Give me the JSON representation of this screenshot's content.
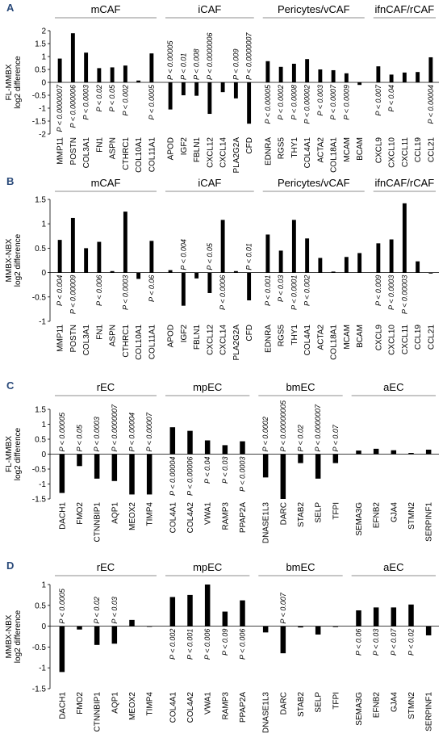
{
  "chart_data": [
    {
      "type": "bar",
      "panel_label": "A",
      "ylabel": [
        "FL-MMBX",
        "log2 difference"
      ],
      "ylim": [
        -2,
        2
      ],
      "yticks": [
        "-2",
        "-1.5",
        "-1",
        "-0.5",
        "0",
        "0.5",
        "1",
        "1.5",
        "2"
      ],
      "groups": [
        {
          "name": "mCAF",
          "categories": [
            "MMP11",
            "POSTN",
            "COL3A1",
            "FN1",
            "ASPN",
            "CTHRC1",
            "COL10A1",
            "COL11A1"
          ],
          "values": [
            0.92,
            1.9,
            1.15,
            0.55,
            0.58,
            0.65,
            0.07,
            1.12
          ],
          "pvalues": [
            "P < 0.0000007",
            "P < 0.000006",
            "P < 0.0003",
            "P < 0.02",
            "P < 0.05",
            "P < 0.002",
            "",
            "P < 0.0005"
          ]
        },
        {
          "name": "iCAF",
          "categories": [
            "APOD",
            "IGF2",
            "FBLN1",
            "CXCL12",
            "CXCL14",
            "PLA2G2A",
            "CFD"
          ],
          "values": [
            -1.05,
            -0.5,
            -0.52,
            -1.22,
            -0.38,
            -0.62,
            -1.6
          ],
          "pvalues": [
            "P < 0.00005",
            "P < 0.01",
            "P < 0.008",
            "P < 0.0000006",
            "",
            "P < 0.009",
            "P < 0.0000007"
          ]
        },
        {
          "name": "Pericytes/vCAF",
          "categories": [
            "EDNRA",
            "RGS5",
            "THY1",
            "COL4A1",
            "ACTA2",
            "COL18A1",
            "MCAM",
            "BCAM"
          ],
          "values": [
            0.82,
            0.6,
            0.72,
            0.9,
            0.5,
            0.47,
            0.35,
            -0.1
          ],
          "pvalues": [
            "P < 0.00005",
            "P < 0.0002",
            "P < 0.0008",
            "P < 0.00002",
            "P < 0.003",
            "P < 0.0007",
            "P < 0.0009",
            ""
          ]
        },
        {
          "name": "ifnCAF/rCAF",
          "categories": [
            "CXCL9",
            "CXCL10",
            "CXCL11",
            "CCL19",
            "CCL21"
          ],
          "values": [
            0.62,
            0.3,
            0.38,
            0.4,
            0.97
          ],
          "pvalues": [
            "P < 0.007",
            "P < 0.04",
            "",
            "",
            "P < 0.00004"
          ]
        }
      ]
    },
    {
      "type": "bar",
      "panel_label": "B",
      "ylabel": [
        "MMBX-NBX",
        "log2 difference"
      ],
      "ylim": [
        -1,
        1.5
      ],
      "yticks": [
        "-1",
        "-0.5",
        "0",
        "0.5",
        "1",
        "1.5"
      ],
      "groups": [
        {
          "name": "mCAF",
          "categories": [
            "MMP11",
            "POSTN",
            "COL3A1",
            "FN1",
            "ASPN",
            "CTHRC1",
            "COL10A1",
            "COL11A1"
          ],
          "values": [
            0.67,
            1.12,
            0.5,
            0.63,
            0.03,
            1.25,
            -0.13,
            0.65
          ],
          "pvalues": [
            "P < 0.004",
            "P < 0.00009",
            "",
            "P < 0.006",
            "",
            "P < 0.0003",
            "",
            "P < 0.06"
          ]
        },
        {
          "name": "iCAF",
          "categories": [
            "APOD",
            "IGF2",
            "FBLN1",
            "CXCL12",
            "CXCL14",
            "PLA2G2A",
            "CFD"
          ],
          "values": [
            0.05,
            -0.68,
            -0.12,
            -0.42,
            1.08,
            0.03,
            -0.57
          ],
          "pvalues": [
            "",
            "P < 0.004",
            "",
            "P < 0.05",
            "P < 0.0006",
            "",
            "P < 0.01"
          ]
        },
        {
          "name": "Pericytes/vCAF",
          "categories": [
            "EDNRA",
            "RGS5",
            "THY1",
            "COL4A1",
            "ACTA2",
            "COL18A1",
            "MCAM",
            "BCAM"
          ],
          "values": [
            0.78,
            0.45,
            1.08,
            0.7,
            0.3,
            0.02,
            0.32,
            0.4
          ],
          "pvalues": [
            "P < 0.001",
            "P < 0.03",
            "P < 0.0001",
            "P < 0.002",
            "",
            "",
            "",
            ""
          ]
        },
        {
          "name": "ifnCAF/rCAF",
          "categories": [
            "CXCL9",
            "CXCL10",
            "CXCL11",
            "CCL19",
            "CCL21"
          ],
          "values": [
            0.6,
            0.68,
            1.42,
            0.23,
            -0.02
          ],
          "pvalues": [
            "P < 0.009",
            "P < 0.0003",
            "P < 0.00003",
            "",
            ""
          ]
        }
      ]
    },
    {
      "type": "bar",
      "panel_label": "C",
      "ylabel": [
        "FL-MMBX",
        "log2 difference"
      ],
      "ylim": [
        -1.5,
        1.5
      ],
      "yticks": [
        "-1.5",
        "-1",
        "-0.5",
        "0",
        "0.5",
        "1",
        "1.5"
      ],
      "groups": [
        {
          "name": "rEC",
          "categories": [
            "DACH1",
            "FMO2",
            "CTNNBIP1",
            "AQP1",
            "MEOX2",
            "TIMP4"
          ],
          "values": [
            -1.3,
            -0.4,
            -0.82,
            -0.9,
            -1.35,
            -1.35
          ],
          "pvalues": [
            "P < 0.00005",
            "P < 0.05",
            "P < 0.0003",
            "P < 0.0000007",
            "P < 0.00004",
            "P < 0.00007"
          ]
        },
        {
          "name": "mpEC",
          "categories": [
            "COL4A1",
            "COL4A2",
            "VWA1",
            "RAMP3",
            "PPAP2A"
          ],
          "values": [
            0.9,
            0.78,
            0.46,
            0.3,
            0.43
          ],
          "pvalues": [
            "P < 0.00004",
            "P < 0.00006",
            "P < 0.04",
            "P < 0.03",
            "P < 0.0003"
          ]
        },
        {
          "name": "bmEC",
          "categories": [
            "DNASE1L3",
            "DARC",
            "STAB2",
            "SELP",
            "TFPI"
          ],
          "values": [
            -0.78,
            -1.5,
            -0.3,
            -0.82,
            -0.3
          ],
          "pvalues": [
            "P < 0.0002",
            "P < 0.00000005",
            "P < 0.02",
            "P < 0.0000007",
            "P < 0.07"
          ]
        },
        {
          "name": "aEC",
          "categories": [
            "SEMA3G",
            "EFNB2",
            "GJA4",
            "STMN2",
            "SERPINF1"
          ],
          "values": [
            0.12,
            0.18,
            0.13,
            0.04,
            0.15
          ],
          "pvalues": [
            "",
            "",
            "",
            "",
            ""
          ]
        }
      ]
    },
    {
      "type": "bar",
      "panel_label": "D",
      "ylabel": [
        "MMBX-NBX",
        "log2 difference"
      ],
      "ylim": [
        -1.5,
        1
      ],
      "yticks": [
        "-1.5",
        "-1",
        "-0.5",
        "0",
        "0.5",
        "1"
      ],
      "groups": [
        {
          "name": "rEC",
          "categories": [
            "DACH1",
            "FMO2",
            "CTNNBIP1",
            "AQP1",
            "MEOX2",
            "TIMP4"
          ],
          "values": [
            -1.1,
            -0.08,
            -0.45,
            -0.42,
            0.15,
            0.0
          ],
          "pvalues": [
            "P < 0.0005",
            "",
            "P < 0.02",
            "P < 0.03",
            "",
            ""
          ]
        },
        {
          "name": "mpEC",
          "categories": [
            "COL4A1",
            "COL4A2",
            "VWA1",
            "RAMP3",
            "PPAP2A"
          ],
          "values": [
            0.7,
            0.75,
            1.0,
            0.35,
            0.62
          ],
          "pvalues": [
            "P < 0.002",
            "P < 0.001",
            "P < 0.006",
            "P < 0.09",
            "P < 0.006"
          ]
        },
        {
          "name": "bmEC",
          "categories": [
            "DNASE1L3",
            "DARC",
            "STAB2",
            "SELP",
            "TFPI"
          ],
          "values": [
            -0.15,
            -0.65,
            -0.03,
            -0.2,
            -0.02
          ],
          "pvalues": [
            "",
            "P < 0.007",
            "",
            "",
            ""
          ]
        },
        {
          "name": "aEC",
          "categories": [
            "SEMA3G",
            "EFNB2",
            "GJA4",
            "STMN2",
            "SERPINF1"
          ],
          "values": [
            0.38,
            0.45,
            0.45,
            0.52,
            -0.22
          ],
          "pvalues": [
            "P < 0.06",
            "P < 0.03",
            "P < 0.07",
            "P < 0.02",
            ""
          ]
        }
      ]
    }
  ]
}
